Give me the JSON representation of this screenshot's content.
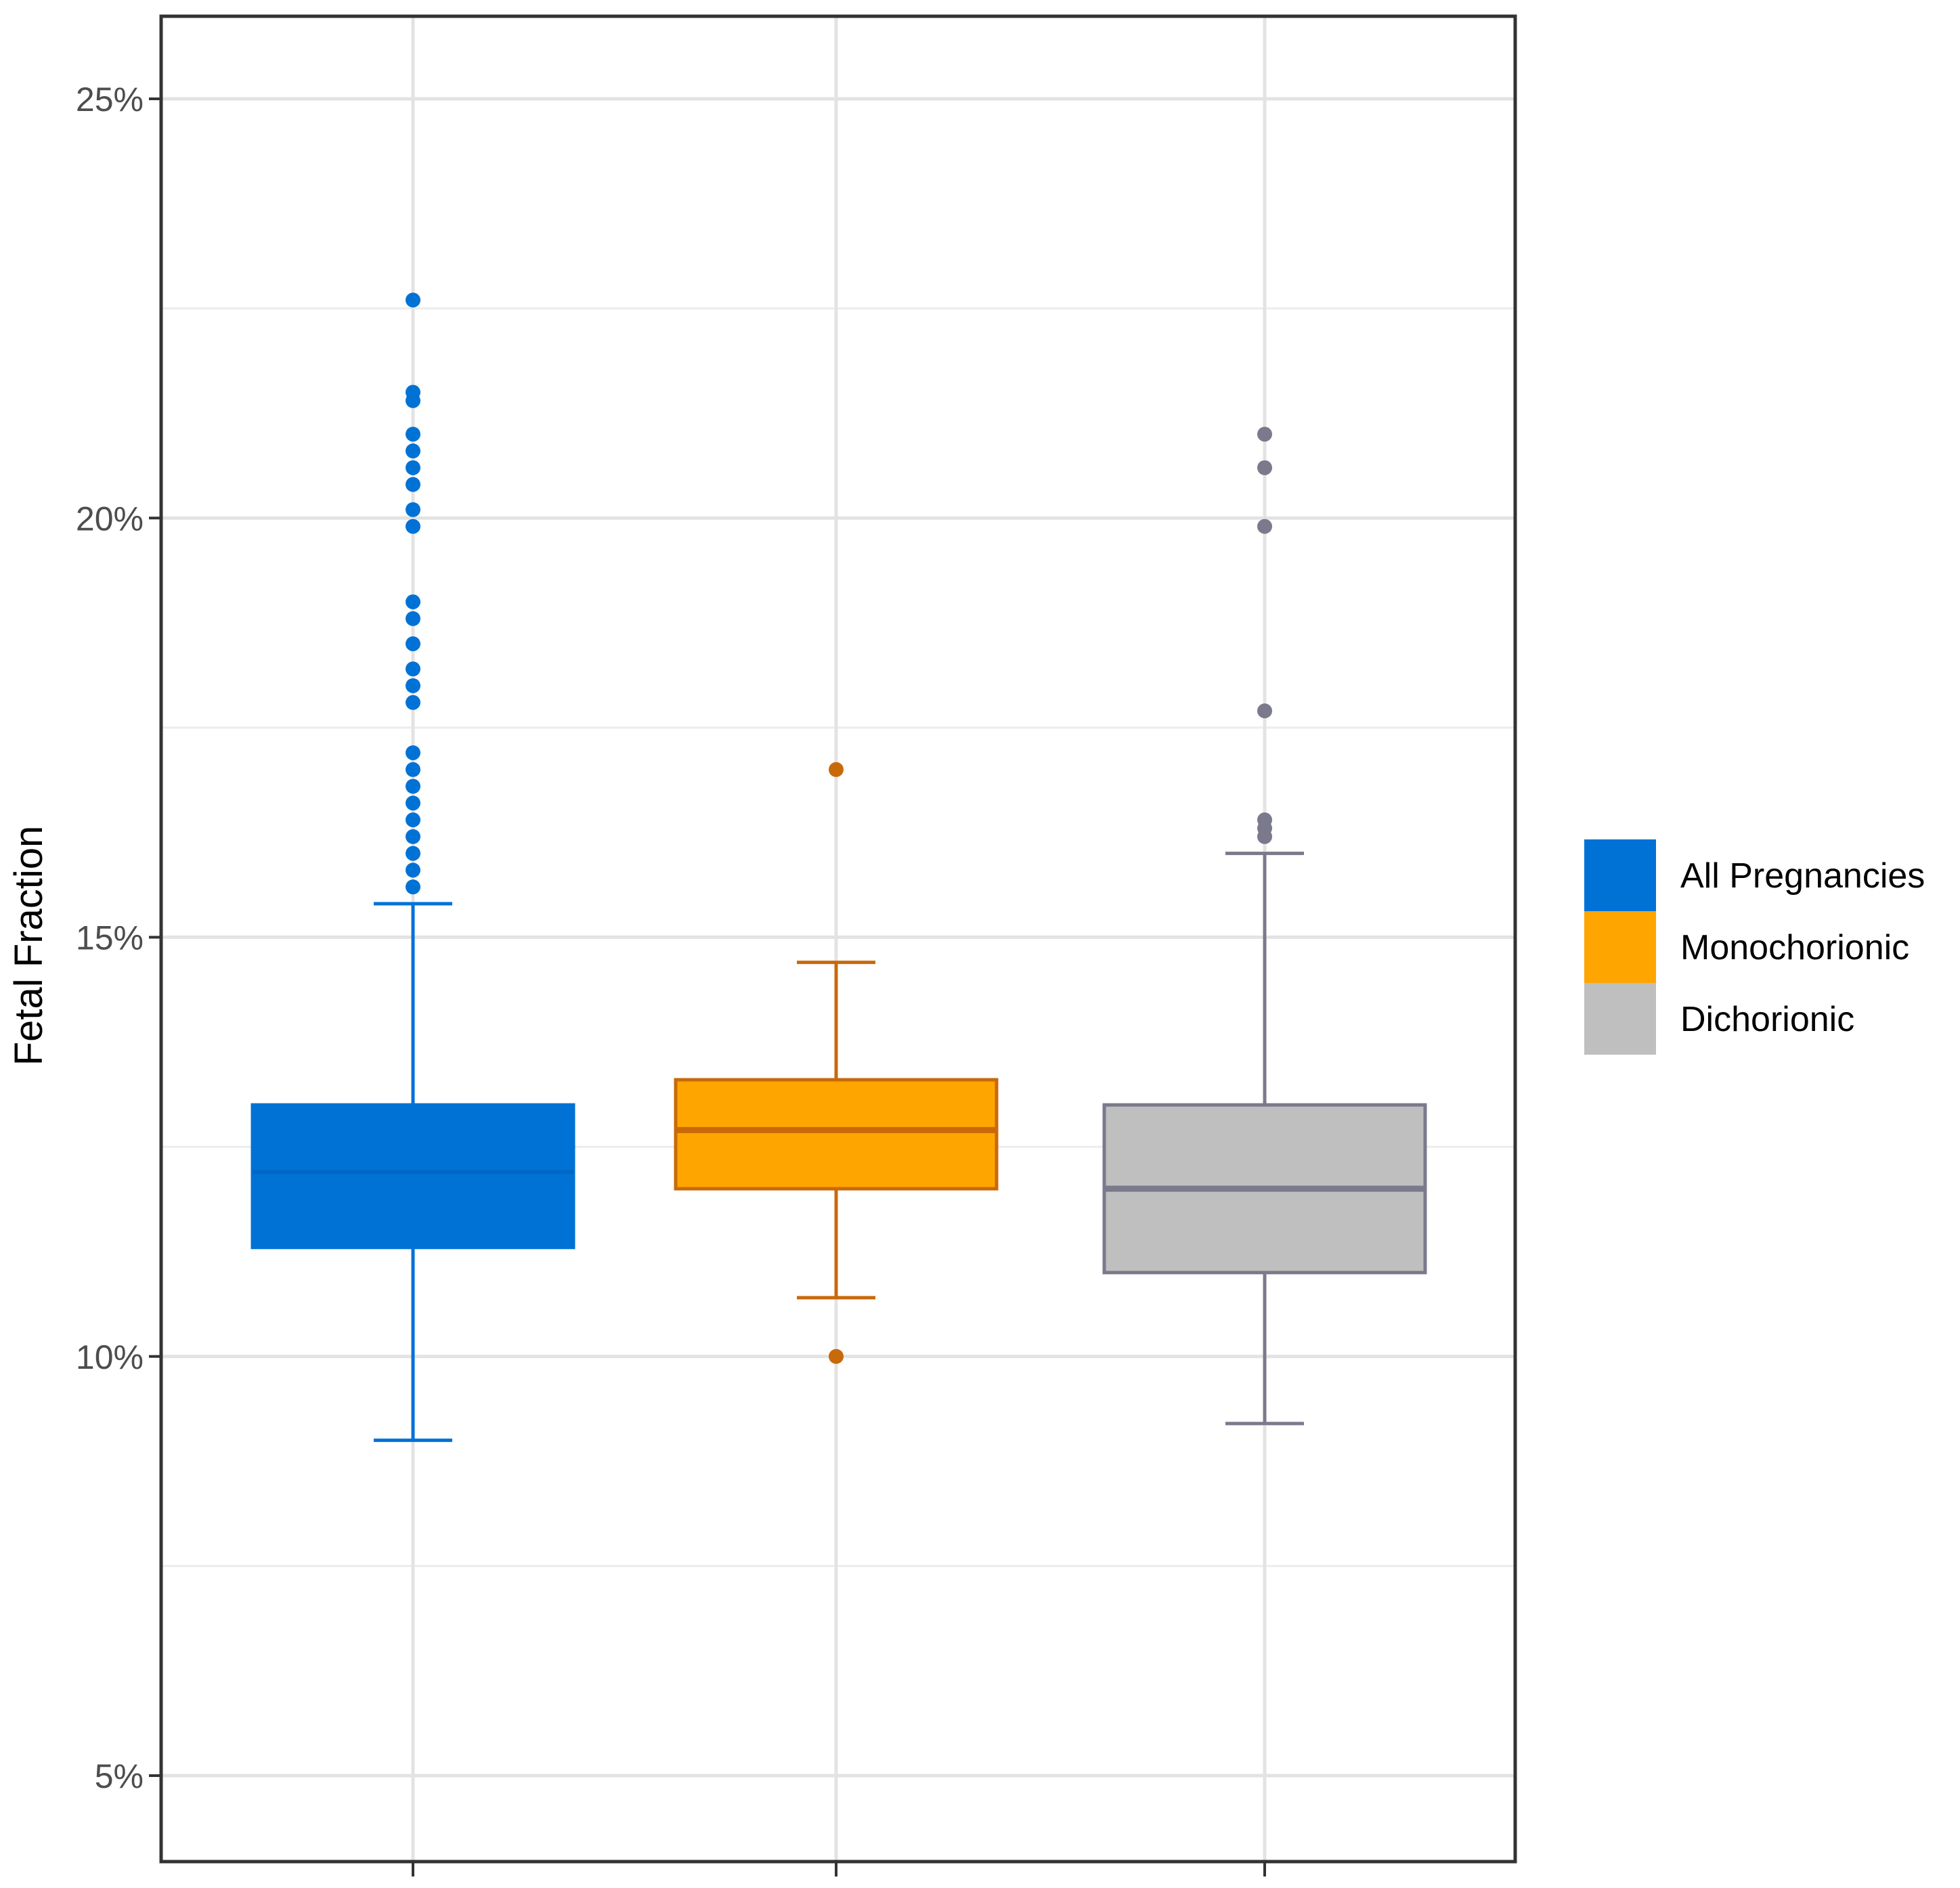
{
  "chart_data": {
    "type": "boxplot",
    "ylabel": "Fetal Fraction",
    "xlabel": "",
    "ylim": [
      4,
      26
    ],
    "yticks": [
      5,
      10,
      15,
      20,
      25
    ],
    "ytick_labels": [
      "5%",
      "10%",
      "15%",
      "20%",
      "25%"
    ],
    "minor_yticks": [
      7.5,
      12.5,
      17.5,
      22.5
    ],
    "grid": true,
    "legend_position": "right",
    "series": [
      {
        "name": "All Pregnancies",
        "fill": "#0072D6",
        "stroke": "#0072D6",
        "whisker_low": 9.0,
        "q1": 11.3,
        "median": 12.2,
        "q3": 13.0,
        "whisker_high": 15.4,
        "outliers": [
          15.6,
          15.8,
          16.0,
          16.2,
          16.4,
          16.6,
          16.8,
          17.0,
          17.2,
          17.8,
          18.0,
          18.2,
          18.5,
          18.8,
          19.0,
          19.9,
          20.1,
          20.4,
          20.6,
          20.8,
          21.0,
          21.4,
          21.5,
          22.6
        ]
      },
      {
        "name": "Monochorionic",
        "fill": "#FFA500",
        "stroke": "#C8690A",
        "whisker_low": 10.7,
        "q1": 12.0,
        "median": 12.7,
        "q3": 13.3,
        "whisker_high": 14.7,
        "outliers": [
          10.0,
          17.0
        ]
      },
      {
        "name": "Dichorionic",
        "fill": "#BFBFBF",
        "stroke": "#7A7A8C",
        "whisker_low": 9.2,
        "q1": 11.0,
        "median": 12.0,
        "q3": 13.0,
        "whisker_high": 16.0,
        "outliers": [
          16.2,
          16.3,
          16.4,
          17.7,
          19.9,
          20.6,
          21.0
        ]
      }
    ]
  }
}
